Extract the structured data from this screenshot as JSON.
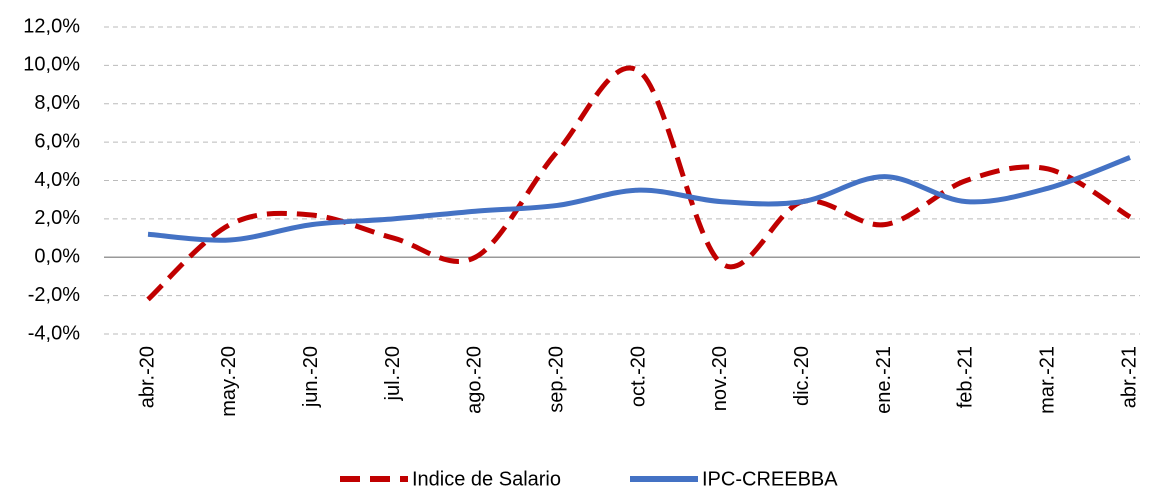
{
  "chart_data": {
    "type": "line",
    "categories": [
      "abr.-20",
      "may.-20",
      "jun.-20",
      "jul.-20",
      "ago.-20",
      "sep.-20",
      "oct.-20",
      "nov.-20",
      "dic.-20",
      "ene.-21",
      "feb.-21",
      "mar.-21",
      "abr.-21"
    ],
    "series": [
      {
        "name": "Indice de Salario",
        "color": "#c00000",
        "dashed": true,
        "values": [
          -2.2,
          1.7,
          2.2,
          1.0,
          0.0,
          5.5,
          9.7,
          -0.3,
          2.9,
          1.7,
          4.0,
          4.6,
          2.1
        ]
      },
      {
        "name": "IPC-CREEBBA",
        "color": "#4472c4",
        "dashed": false,
        "values": [
          1.2,
          0.9,
          1.7,
          2.0,
          2.4,
          2.7,
          3.5,
          2.9,
          2.9,
          4.2,
          2.9,
          3.6,
          5.2
        ]
      }
    ],
    "ylim": [
      -4,
      12
    ],
    "yticks": [
      {
        "value": -4,
        "label": "-4,0%"
      },
      {
        "value": -2,
        "label": "-2,0%"
      },
      {
        "value": 0,
        "label": "0,0%"
      },
      {
        "value": 2,
        "label": "2,0%"
      },
      {
        "value": 4,
        "label": "4,0%"
      },
      {
        "value": 6,
        "label": "6,0%"
      },
      {
        "value": 8,
        "label": "8,0%"
      },
      {
        "value": 10,
        "label": "10,0%"
      },
      {
        "value": 12,
        "label": "12,0%"
      }
    ],
    "grid": true,
    "smooth": true,
    "legend": "bottom"
  }
}
